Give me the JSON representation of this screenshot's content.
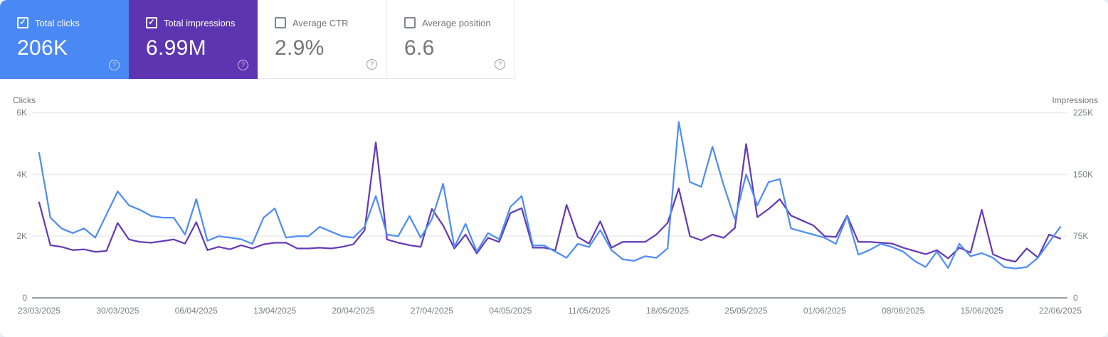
{
  "app": {
    "panel_title": "Search performance panel"
  },
  "icons": {
    "help": "?",
    "check": "✓"
  },
  "cards": [
    {
      "label": "Total clicks",
      "value": "206K",
      "checked": true,
      "color": "#4a88f3"
    },
    {
      "label": "Total impressions",
      "value": "6.99M",
      "checked": true,
      "color": "#5e35b1"
    },
    {
      "label": "Average CTR",
      "value": "2.9%",
      "checked": false,
      "color": "#ffffff"
    },
    {
      "label": "Average position",
      "value": "6.6",
      "checked": false,
      "color": "#ffffff"
    }
  ],
  "chart_data": {
    "type": "line",
    "frequency": "daily",
    "x_start": "23/03/2025",
    "x_end": "22/06/2025",
    "x_tick_labels": [
      "23/03/2025",
      "30/03/2025",
      "06/04/2025",
      "13/04/2025",
      "20/04/2025",
      "27/04/2025",
      "04/05/2025",
      "11/05/2025",
      "18/05/2025",
      "25/05/2025",
      "01/06/2025",
      "08/06/2025",
      "15/06/2025",
      "22/06/2025"
    ],
    "left_axis": {
      "title": "Clicks",
      "ticks": [
        "0",
        "2K",
        "4K",
        "6K"
      ],
      "min": 0,
      "max": 6000
    },
    "right_axis": {
      "title": "Impressions",
      "ticks": [
        "0",
        "75K",
        "150K",
        "225K"
      ],
      "min": 0,
      "max": 225000
    },
    "grid": "horizontal",
    "legend_position": "none",
    "series": [
      {
        "name": "Clicks",
        "axis": "left",
        "color": "#4e8df5",
        "values": [
          4700,
          2600,
          2250,
          2100,
          2250,
          1950,
          2700,
          3450,
          3000,
          2850,
          2650,
          2600,
          2600,
          2050,
          3200,
          1850,
          2000,
          1950,
          1900,
          1750,
          2600,
          2900,
          1950,
          2000,
          2000,
          2300,
          2150,
          2000,
          1950,
          2300,
          3300,
          2050,
          2000,
          2650,
          1950,
          2550,
          3700,
          1650,
          2400,
          1500,
          2100,
          1900,
          2950,
          3300,
          1700,
          1700,
          1500,
          1300,
          1750,
          1650,
          2200,
          1550,
          1250,
          1200,
          1350,
          1300,
          1600,
          5700,
          3750,
          3600,
          4900,
          3650,
          2550,
          4000,
          3000,
          3750,
          3850,
          2250,
          2150,
          2050,
          1950,
          1750,
          2650,
          1400,
          1550,
          1750,
          1650,
          1500,
          1200,
          1000,
          1500,
          970,
          1750,
          1350,
          1450,
          1300,
          1000,
          950,
          1000,
          1300,
          1800,
          2300
        ]
      },
      {
        "name": "Impressions",
        "axis": "right",
        "color": "#673ab7",
        "values": [
          116000,
          64000,
          62000,
          58000,
          59000,
          56000,
          57000,
          91000,
          71000,
          68000,
          67000,
          69000,
          71000,
          66000,
          92000,
          58000,
          62000,
          59000,
          64000,
          60000,
          65000,
          67000,
          67000,
          60000,
          60000,
          61000,
          60000,
          62000,
          65000,
          82000,
          189000,
          71000,
          67000,
          64000,
          62000,
          108000,
          88000,
          60000,
          77000,
          54000,
          73000,
          68000,
          103000,
          109000,
          61000,
          61000,
          58000,
          113000,
          74000,
          66000,
          93000,
          61000,
          68000,
          68000,
          68000,
          77000,
          91000,
          133000,
          75000,
          70000,
          77000,
          73000,
          85000,
          187000,
          98000,
          108000,
          120000,
          100000,
          94000,
          88000,
          75000,
          74000,
          100000,
          68000,
          68000,
          67000,
          66000,
          61000,
          57000,
          53000,
          58000,
          48000,
          61000,
          55000,
          107000,
          53000,
          47000,
          44000,
          60000,
          49000,
          77000,
          72000
        ]
      }
    ]
  },
  "colors": {
    "clicks_card": "#4a88f3",
    "impressions_card": "#5e35b1",
    "clicks_line": "#4e8df5",
    "impressions_line": "#673ab7",
    "gridline": "#ececec",
    "axis_baseline": "#9aa0a6",
    "muted_text": "#757575"
  }
}
